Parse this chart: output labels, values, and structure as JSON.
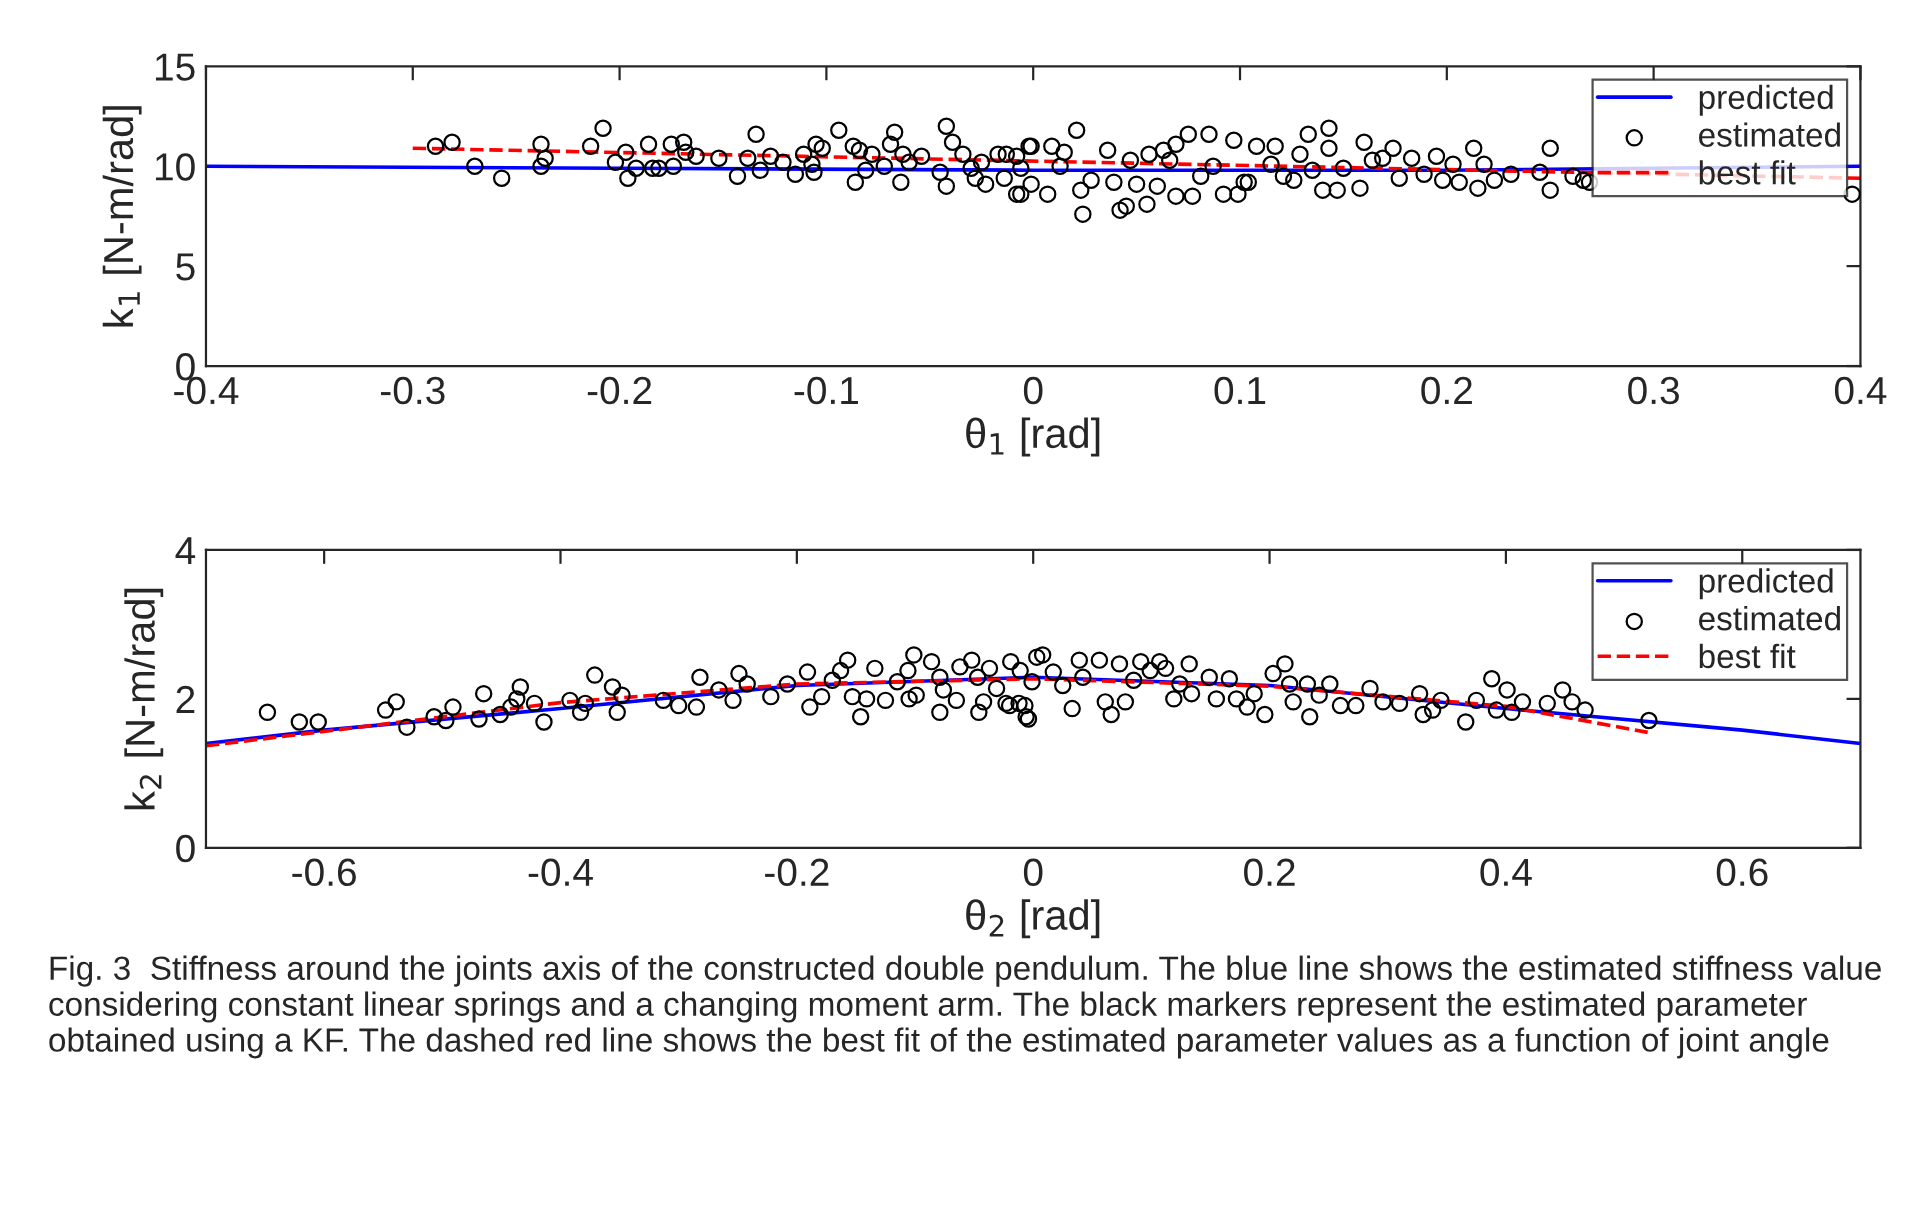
{
  "chart_data": [
    {
      "type": "scatter",
      "xlabel": "θ$_{1}$ [rad]",
      "ylabel": "k$_{1}$ [N-m/rad]",
      "xlim": [
        -0.4,
        0.4
      ],
      "ylim": [
        0,
        15
      ],
      "xticks": [
        -0.4,
        -0.3,
        -0.2,
        -0.1,
        0,
        0.1,
        0.2,
        0.3,
        0.4
      ],
      "yticks": [
        0,
        5,
        10,
        15
      ],
      "legend": "top right",
      "grid": false,
      "series": [
        {
          "name": "predicted",
          "type": "line",
          "color": "#0000ff",
          "line_style": "solid",
          "marker": "none",
          "x": [
            -0.4,
            -0.2,
            0,
            0.2,
            0.4
          ],
          "values": [
            10.0,
            9.9,
            9.8,
            9.8,
            10.0
          ]
        },
        {
          "name": "estimated",
          "color": "#000000",
          "marker": "circle",
          "x": [
            -0.289,
            -0.281,
            -0.27,
            -0.257,
            -0.238,
            -0.236,
            -0.238,
            -0.214,
            -0.208,
            -0.202,
            -0.197,
            -0.196,
            -0.192,
            -0.186,
            -0.184,
            -0.181,
            -0.175,
            -0.174,
            -0.169,
            -0.168,
            -0.163,
            -0.152,
            -0.143,
            -0.138,
            -0.134,
            -0.132,
            -0.127,
            -0.121,
            -0.115,
            -0.111,
            -0.107,
            -0.105,
            -0.102,
            -0.106,
            -0.094,
            -0.087,
            -0.086,
            -0.084,
            -0.081,
            -0.078,
            -0.072,
            -0.067,
            -0.069,
            -0.064,
            -0.063,
            -0.06,
            -0.054,
            -0.042,
            -0.045,
            -0.039,
            -0.042,
            -0.034,
            -0.03,
            -0.028,
            -0.025,
            -0.023,
            -0.017,
            -0.014,
            -0.008,
            -0.006,
            -0.002,
            -0.001,
            -0.013,
            -0.008,
            -0.001,
            -0.006,
            0.007,
            0.009,
            0.013,
            0.015,
            0.021,
            0.024,
            0.023,
            0.028,
            0.036,
            0.039,
            0.042,
            0.045,
            0.047,
            0.05,
            0.056,
            0.055,
            0.06,
            0.063,
            0.066,
            0.069,
            0.069,
            0.075,
            0.077,
            0.081,
            0.085,
            0.087,
            0.092,
            0.097,
            0.099,
            0.102,
            0.104,
            0.108,
            0.115,
            0.117,
            0.121,
            0.126,
            0.129,
            0.133,
            0.135,
            0.14,
            0.143,
            0.143,
            0.147,
            0.15,
            0.158,
            0.16,
            0.164,
            0.169,
            0.174,
            0.177,
            0.183,
            0.189,
            0.195,
            0.198,
            0.203,
            0.206,
            0.213,
            0.215,
            0.218,
            0.223,
            0.231,
            0.245,
            0.25,
            0.25,
            0.261,
            0.266,
            0.269,
            0.396
          ],
          "values": [
            11.0,
            11.2,
            10.0,
            9.4,
            11.1,
            10.4,
            10.0,
            11.0,
            11.9,
            10.2,
            10.7,
            9.4,
            9.9,
            11.1,
            9.9,
            9.9,
            11.1,
            10.0,
            11.2,
            10.7,
            10.5,
            10.4,
            9.5,
            10.4,
            11.6,
            9.8,
            10.5,
            10.2,
            9.6,
            10.6,
            10.1,
            11.1,
            10.9,
            9.7,
            11.8,
            11.0,
            9.2,
            10.8,
            9.8,
            10.6,
            10.0,
            11.7,
            11.1,
            9.2,
            10.6,
            10.2,
            10.5,
            12.0,
            9.7,
            11.2,
            9.0,
            10.6,
            9.9,
            9.4,
            10.2,
            9.1,
            10.6,
            9.4,
            8.6,
            9.9,
            11.0,
            9.1,
            10.6,
            10.5,
            11.0,
            8.6,
            8.6,
            11.0,
            10.0,
            10.7,
            11.8,
            7.6,
            8.8,
            9.3,
            10.8,
            9.2,
            7.8,
            8.0,
            10.3,
            9.1,
            10.6,
            8.1,
            9.0,
            10.8,
            10.3,
            8.5,
            11.1,
            11.6,
            8.5,
            9.5,
            11.6,
            10.0,
            8.6,
            11.3,
            8.6,
            9.2,
            9.2,
            11.0,
            10.1,
            11.0,
            9.5,
            9.3,
            10.6,
            11.6,
            9.8,
            8.8,
            11.9,
            10.9,
            8.8,
            9.9,
            8.9,
            11.2,
            10.3,
            10.4,
            10.9,
            9.4,
            10.4,
            9.6,
            10.5,
            9.3,
            10.1,
            9.2,
            10.9,
            8.9,
            10.1,
            9.3,
            9.6,
            9.7,
            10.9,
            8.8,
            9.5,
            9.3,
            9.2,
            8.6
          ]
        },
        {
          "name": "best fit",
          "type": "line",
          "color": "#ff0000",
          "line_style": "dashed",
          "marker": "none",
          "x": [
            -0.3,
            0.4
          ],
          "values": [
            10.9,
            9.4
          ]
        }
      ]
    },
    {
      "type": "scatter",
      "xlabel": "θ$_{2}$ [rad]",
      "ylabel": "k$_{2}$ [N-m/rad]",
      "xlim": [
        -0.7,
        0.7
      ],
      "ylim": [
        0,
        4
      ],
      "xticks": [
        -0.6,
        -0.4,
        -0.2,
        0,
        0.2,
        0.4,
        0.6
      ],
      "yticks": [
        0,
        2,
        4
      ],
      "legend": "top right",
      "grid": false,
      "annotations": [
        "Fig. 3  Stiffness around the joints axis of the constructed double pendulum. The blue line shows the estimated stiffness value considering constant linear springs and a changing moment arm. The black markers represent the estimated parameter obtained using a KF. The dashed red line shows the best fit of the estimated parameter values as a function of joint angle"
      ],
      "series": [
        {
          "name": "predicted",
          "type": "line",
          "color": "#0000ff",
          "line_style": "solid",
          "marker": "none",
          "x": [
            -0.7,
            -0.6,
            -0.4,
            -0.2,
            0,
            0.2,
            0.4,
            0.6,
            0.7
          ],
          "values": [
            1.4,
            1.58,
            1.87,
            2.18,
            2.29,
            2.18,
            1.87,
            1.58,
            1.4
          ]
        },
        {
          "name": "estimated",
          "color": "#000000",
          "marker": "circle",
          "x": [
            -0.648,
            -0.621,
            -0.605,
            -0.548,
            -0.539,
            -0.53,
            -0.507,
            -0.497,
            -0.491,
            -0.469,
            -0.465,
            -0.451,
            -0.442,
            -0.437,
            -0.434,
            -0.422,
            -0.414,
            -0.392,
            -0.383,
            -0.379,
            -0.371,
            -0.356,
            -0.352,
            -0.348,
            -0.313,
            -0.3,
            -0.285,
            -0.282,
            -0.266,
            -0.254,
            -0.249,
            -0.242,
            -0.222,
            -0.208,
            -0.191,
            -0.189,
            -0.179,
            -0.17,
            -0.163,
            -0.157,
            -0.153,
            -0.146,
            -0.141,
            -0.134,
            -0.125,
            -0.115,
            -0.106,
            -0.105,
            -0.099,
            -0.101,
            -0.086,
            -0.079,
            -0.079,
            -0.076,
            -0.065,
            -0.062,
            -0.052,
            -0.046,
            -0.047,
            -0.042,
            -0.037,
            -0.031,
            -0.02,
            -0.019,
            -0.011,
            -0.007,
            -0.004,
            -0.001,
            -0.023,
            -0.006,
            -0.012,
            0.003,
            0.008,
            0.017,
            0.025,
            0.033,
            0.039,
            0.042,
            0.056,
            0.061,
            0.066,
            0.073,
            0.078,
            0.085,
            0.091,
            0.099,
            0.107,
            0.112,
            0.119,
            0.124,
            0.132,
            0.134,
            0.149,
            0.155,
            0.166,
            0.172,
            0.181,
            0.187,
            0.196,
            0.203,
            0.213,
            0.217,
            0.22,
            0.234,
            0.232,
            0.242,
            0.251,
            0.26,
            0.273,
            0.285,
            0.296,
            0.31,
            0.327,
            0.33,
            0.338,
            0.345,
            0.366,
            0.375,
            0.388,
            0.392,
            0.401,
            0.405,
            0.414,
            0.435,
            0.448,
            0.456,
            0.467,
            0.521
          ],
          "values": [
            1.82,
            1.69,
            1.69,
            1.85,
            1.96,
            1.62,
            1.76,
            1.71,
            1.89,
            1.73,
            2.07,
            1.79,
            1.89,
            2.0,
            2.16,
            1.94,
            1.69,
            1.98,
            1.82,
            1.94,
            2.32,
            2.16,
            1.82,
            2.05,
            1.98,
            1.91,
            1.89,
            2.29,
            2.12,
            1.98,
            2.34,
            2.2,
            2.03,
            2.2,
            2.36,
            1.89,
            2.03,
            2.25,
            2.38,
            2.52,
            2.03,
            1.76,
            2.0,
            2.41,
            1.98,
            2.23,
            2.38,
            2.0,
            2.05,
            2.59,
            2.5,
            1.82,
            2.29,
            2.12,
            1.98,
            2.43,
            2.52,
            1.82,
            2.29,
            1.96,
            2.41,
            2.14,
            1.91,
            2.5,
            2.38,
            1.91,
            1.73,
            2.23,
            1.94,
            1.76,
            1.94,
            2.56,
            2.59,
            2.36,
            2.18,
            1.87,
            2.52,
            2.29,
            2.52,
            1.96,
            1.79,
            2.47,
            1.96,
            2.25,
            2.5,
            2.38,
            2.5,
            2.41,
            2.0,
            2.2,
            2.47,
            2.07,
            2.29,
            2.0,
            2.27,
            2.0,
            1.89,
            2.07,
            1.79,
            2.34,
            2.47,
            2.2,
            1.96,
            1.76,
            2.2,
            2.05,
            2.2,
            1.91,
            1.91,
            2.14,
            1.96,
            1.94,
            2.07,
            1.79,
            1.85,
            1.98,
            1.69,
            1.98,
            2.27,
            1.85,
            2.12,
            1.82,
            1.96,
            1.94,
            2.12,
            1.96,
            1.85,
            1.71
          ]
        },
        {
          "name": "best fit",
          "type": "line",
          "color": "#ff0000",
          "line_style": "dashed",
          "marker": "none",
          "x": [
            -0.7,
            -0.4,
            -0.2,
            0,
            0.2,
            0.4,
            0.52
          ],
          "values": [
            1.37,
            1.95,
            2.2,
            2.27,
            2.17,
            1.9,
            1.55
          ]
        }
      ]
    }
  ]
}
